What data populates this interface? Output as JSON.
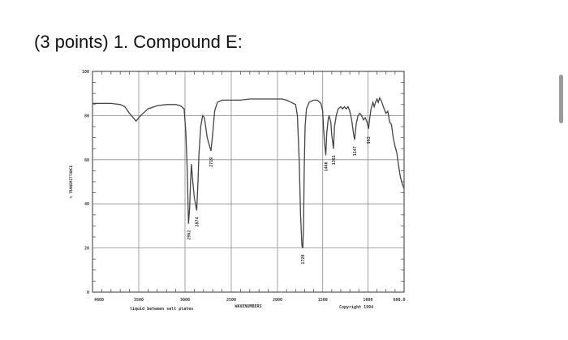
{
  "question": {
    "title": "(3 points) 1. Compound E:"
  },
  "chart_data": {
    "type": "line",
    "title": "",
    "xlabel": "WAVENUMBERS",
    "ylabel": "% TRANSMITTANCE",
    "xlim": [
      4000,
      600
    ],
    "ylim": [
      0,
      100
    ],
    "x_reversed": true,
    "grid": true,
    "x_tick_labels": [
      "4000",
      "3500",
      "3000",
      "2500",
      "2000",
      "1500",
      "1000",
      "600.0"
    ],
    "y_tick_labels": [
      "100",
      "80",
      "60",
      "40",
      "20",
      "0"
    ],
    "sample_note": "liquid between salt plates",
    "copyright": "Copyright 1994",
    "line_color": "#444444",
    "series": [
      {
        "points": [
          [
            4000,
            85.5
          ],
          [
            3800,
            85.5
          ],
          [
            3700,
            85
          ],
          [
            3650,
            84
          ],
          [
            3600,
            81
          ],
          [
            3560,
            79
          ],
          [
            3530,
            77.5
          ],
          [
            3480,
            80
          ],
          [
            3400,
            83
          ],
          [
            3300,
            84.5
          ],
          [
            3200,
            85
          ],
          [
            3100,
            85
          ],
          [
            3050,
            84.5
          ],
          [
            3010,
            83
          ],
          [
            2990,
            72
          ],
          [
            2975,
            55
          ],
          [
            2962,
            31
          ],
          [
            2950,
            38
          ],
          [
            2940,
            50
          ],
          [
            2930,
            58
          ],
          [
            2920,
            52
          ],
          [
            2900,
            43
          ],
          [
            2874,
            37
          ],
          [
            2860,
            50
          ],
          [
            2850,
            62
          ],
          [
            2830,
            75
          ],
          [
            2810,
            80
          ],
          [
            2790,
            79
          ],
          [
            2760,
            70
          ],
          [
            2740,
            67
          ],
          [
            2719,
            64
          ],
          [
            2700,
            72
          ],
          [
            2680,
            82
          ],
          [
            2650,
            86
          ],
          [
            2600,
            87
          ],
          [
            2500,
            87
          ],
          [
            2400,
            87
          ],
          [
            2300,
            87.5
          ],
          [
            2200,
            87.5
          ],
          [
            2100,
            87.5
          ],
          [
            2000,
            87.5
          ],
          [
            1950,
            87.5
          ],
          [
            1900,
            87
          ],
          [
            1850,
            86
          ],
          [
            1800,
            85
          ],
          [
            1780,
            80
          ],
          [
            1760,
            60
          ],
          [
            1745,
            35
          ],
          [
            1730,
            21
          ],
          [
            1720,
            20
          ],
          [
            1712,
            30
          ],
          [
            1705,
            55
          ],
          [
            1695,
            75
          ],
          [
            1680,
            83
          ],
          [
            1650,
            86
          ],
          [
            1600,
            87
          ],
          [
            1560,
            87
          ],
          [
            1520,
            85.5
          ],
          [
            1500,
            82
          ],
          [
            1490,
            74
          ],
          [
            1480,
            68
          ],
          [
            1466,
            62
          ],
          [
            1455,
            72
          ],
          [
            1440,
            78
          ],
          [
            1430,
            80
          ],
          [
            1410,
            77
          ],
          [
            1400,
            71
          ],
          [
            1390,
            68
          ],
          [
            1381,
            65
          ],
          [
            1370,
            75
          ],
          [
            1350,
            80
          ],
          [
            1330,
            83
          ],
          [
            1300,
            84
          ],
          [
            1280,
            83
          ],
          [
            1260,
            84
          ],
          [
            1240,
            83
          ],
          [
            1220,
            84
          ],
          [
            1200,
            82
          ],
          [
            1180,
            78
          ],
          [
            1160,
            72
          ],
          [
            1147,
            69
          ],
          [
            1130,
            76
          ],
          [
            1110,
            80
          ],
          [
            1090,
            81
          ],
          [
            1070,
            80
          ],
          [
            1050,
            78
          ],
          [
            1030,
            79
          ],
          [
            1010,
            77
          ],
          [
            993,
            74
          ],
          [
            980,
            79
          ],
          [
            965,
            83
          ],
          [
            945,
            86
          ],
          [
            930,
            84
          ],
          [
            915,
            86
          ],
          [
            900,
            87.5
          ],
          [
            885,
            86
          ],
          [
            870,
            88
          ],
          [
            850,
            86.5
          ],
          [
            830,
            84
          ],
          [
            800,
            81
          ],
          [
            780,
            82
          ],
          [
            760,
            77
          ],
          [
            740,
            76
          ],
          [
            720,
            70
          ],
          [
            700,
            66
          ],
          [
            680,
            63
          ],
          [
            660,
            57
          ],
          [
            640,
            52
          ],
          [
            620,
            49
          ],
          [
            600,
            47
          ]
        ]
      }
    ],
    "annotations": [
      {
        "x": 2962,
        "y": 31,
        "text": "2962"
      },
      {
        "x": 2874,
        "y": 37,
        "text": "2874"
      },
      {
        "x": 2719,
        "y": 64,
        "text": "2719"
      },
      {
        "x": 1720,
        "y": 20,
        "text": "1720"
      },
      {
        "x": 1466,
        "y": 62,
        "text": "1466"
      },
      {
        "x": 1381,
        "y": 65,
        "text": "1381"
      },
      {
        "x": 1147,
        "y": 69,
        "text": "1147"
      },
      {
        "x": 993,
        "y": 74,
        "text": "993"
      }
    ]
  }
}
